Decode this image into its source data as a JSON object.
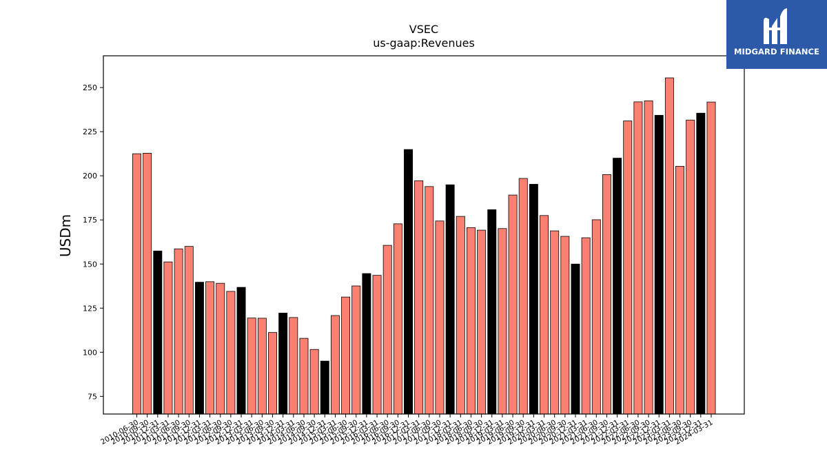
{
  "chart_data": {
    "type": "bar",
    "title": "VSEC",
    "subtitle": "us-gaap:Revenues",
    "xlabel": "",
    "ylabel": "USDm",
    "ylim": [
      65,
      268
    ],
    "yticks": [
      75,
      100,
      125,
      150,
      175,
      200,
      225,
      250
    ],
    "colors": {
      "default": "#fa8072",
      "highlight": "#000000",
      "edge": "#000000"
    },
    "categories": [
      "2010-06-30",
      "2010-09-30",
      "2010-12-31",
      "2011-03-31",
      "2011-06-30",
      "2011-09-30",
      "2011-12-31",
      "2012-03-31",
      "2012-06-30",
      "2012-09-30",
      "2012-12-31",
      "2013-03-31",
      "2013-06-30",
      "2013-09-30",
      "2013-12-31",
      "2014-03-31",
      "2014-06-30",
      "2014-09-30",
      "2014-12-31",
      "2015-03-31",
      "2015-06-30",
      "2015-09-30",
      "2015-12-31",
      "2016-03-31",
      "2016-06-30",
      "2016-09-30",
      "2016-12-31",
      "2017-03-31",
      "2017-06-30",
      "2017-09-30",
      "2017-12-31",
      "2018-03-31",
      "2018-06-30",
      "2018-09-30",
      "2018-12-31",
      "2019-03-31",
      "2019-06-30",
      "2019-09-30",
      "2019-12-31",
      "2020-03-31",
      "2020-06-30",
      "2020-09-30",
      "2020-12-31",
      "2021-03-31",
      "2021-06-30",
      "2021-09-30",
      "2021-12-31",
      "2022-03-31",
      "2022-06-30",
      "2022-09-30",
      "2022-12-31",
      "2023-03-31",
      "2023-06-30",
      "2023-09-30",
      "2023-12-31",
      "2024-03-31"
    ],
    "values": [
      212.5,
      212.8,
      157.4,
      151.2,
      158.6,
      160.0,
      139.7,
      140.0,
      139.1,
      134.5,
      136.8,
      119.4,
      119.3,
      111.2,
      122.2,
      119.7,
      107.9,
      101.6,
      95.0,
      120.8,
      131.3,
      137.6,
      144.6,
      143.6,
      160.6,
      172.8,
      214.9,
      197.2,
      193.9,
      174.4,
      194.9,
      177.0,
      170.6,
      169.2,
      180.8,
      170.1,
      189.1,
      198.5,
      195.2,
      177.5,
      168.8,
      165.7,
      150.0,
      164.9,
      175.1,
      200.7,
      210.0,
      231.1,
      241.9,
      242.5,
      234.3,
      255.5,
      205.4,
      231.6,
      235.5,
      241.8
    ],
    "highlight": [
      false,
      false,
      true,
      false,
      false,
      false,
      true,
      false,
      false,
      false,
      true,
      false,
      false,
      false,
      true,
      false,
      false,
      false,
      true,
      false,
      false,
      false,
      true,
      false,
      false,
      false,
      true,
      false,
      false,
      false,
      true,
      false,
      false,
      false,
      true,
      false,
      false,
      false,
      true,
      false,
      false,
      false,
      true,
      false,
      false,
      false,
      true,
      false,
      false,
      false,
      true,
      false,
      false,
      false,
      true,
      false
    ]
  },
  "logo": {
    "text": "MIDGARD FINANCE"
  }
}
